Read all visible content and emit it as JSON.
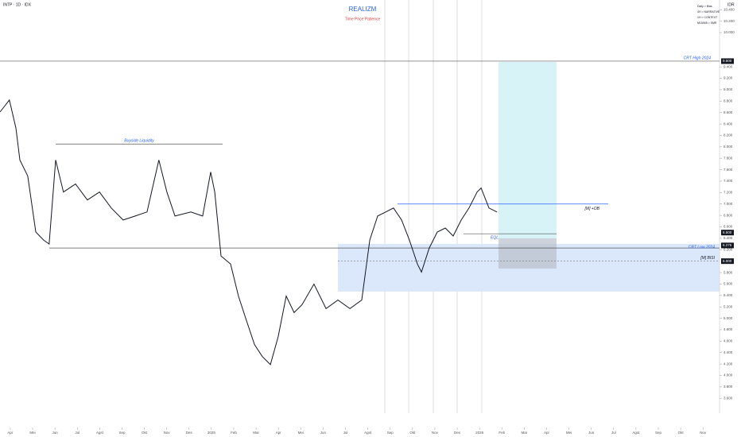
{
  "chart_data": {
    "type": "line",
    "symbol": "INTP · 1D · IDX",
    "currency": "IDR",
    "title": "REALIZM",
    "subtitle": "Time Price Patience",
    "notes": [
      "Daily > Bias",
      "4H > NARRATIVE",
      "1H > CONTEXT",
      "M15/M5 > SMR"
    ],
    "color": "#131722",
    "x": [
      -0.46,
      -0.04,
      0.25,
      0.43,
      0.78,
      1.14,
      1.49,
      1.74,
      2.03,
      2.38,
      2.92,
      3.45,
      3.99,
      4.52,
      5.05,
      5.59,
      6.12,
      6.65,
      7.01,
      7.37,
      8.08,
      8.61,
      8.97,
      9.15,
      9.43,
      9.86,
      10.21,
      10.57,
      10.93,
      11.28,
      11.64,
      11.99,
      12.35,
      12.7,
      13.06,
      13.59,
      14.13,
      14.66,
      15.2,
      15.73,
      16.09,
      16.44,
      16.8,
      17.15,
      17.51,
      17.86,
      18.22,
      18.4,
      18.75,
      19.11,
      19.47,
      19.82,
      20.18,
      20.53,
      20.89,
      21.07,
      21.42,
      21.78
    ],
    "values": [
      8610,
      8820,
      8330,
      7770,
      7490,
      6510,
      6370,
      6300,
      7770,
      7210,
      7350,
      7070,
      7210,
      6930,
      6720,
      6790,
      6860,
      7770,
      7210,
      6790,
      6860,
      6790,
      7560,
      7210,
      6090,
      5950,
      5390,
      4960,
      4540,
      4330,
      4190,
      4680,
      5390,
      5100,
      5240,
      5600,
      5170,
      5320,
      5170,
      5320,
      6370,
      6790,
      6860,
      6930,
      6720,
      6370,
      5950,
      5810,
      6230,
      6510,
      6580,
      6440,
      6720,
      6930,
      7210,
      7280,
      6930,
      6860
    ],
    "xlim": [
      -0.46,
      31.74
    ],
    "xticks": [
      {
        "value": 0,
        "label": "Apr"
      },
      {
        "value": 1,
        "label": "Mei"
      },
      {
        "value": 2,
        "label": "Jun"
      },
      {
        "value": 3,
        "label": "Jul"
      },
      {
        "value": 4,
        "label": "Agst"
      },
      {
        "value": 5,
        "label": "Sep"
      },
      {
        "value": 6,
        "label": "Okt"
      },
      {
        "value": 7,
        "label": "Nov"
      },
      {
        "value": 8,
        "label": "Des"
      },
      {
        "value": 9,
        "label": "2025"
      },
      {
        "value": 10,
        "label": "Feb"
      },
      {
        "value": 11,
        "label": "Mar"
      },
      {
        "value": 12,
        "label": "Apr"
      },
      {
        "value": 13,
        "label": "Mei"
      },
      {
        "value": 14,
        "label": "Jun"
      },
      {
        "value": 15,
        "label": "Jul"
      },
      {
        "value": 16,
        "label": "Agst"
      },
      {
        "value": 17,
        "label": "Sep"
      },
      {
        "value": 18,
        "label": "Okt"
      },
      {
        "value": 19,
        "label": "Nov"
      },
      {
        "value": 20,
        "label": "Des"
      },
      {
        "value": 21,
        "label": "2026"
      },
      {
        "value": 22,
        "label": "Feb"
      },
      {
        "value": 23,
        "label": "Mar"
      },
      {
        "value": 24,
        "label": "Apr"
      },
      {
        "value": 25,
        "label": "Mei"
      },
      {
        "value": 26,
        "label": "Jun"
      },
      {
        "value": 27,
        "label": "Jul"
      },
      {
        "value": 28,
        "label": "Agst"
      },
      {
        "value": 29,
        "label": "Sep"
      },
      {
        "value": 30,
        "label": "Okt"
      },
      {
        "value": 31,
        "label": "Nov"
      }
    ],
    "ylim": [
      3340,
      10570
    ],
    "yticks": [
      {
        "value": 3600,
        "label": "3.600"
      },
      {
        "value": 3800,
        "label": "3.800"
      },
      {
        "value": 4000,
        "label": "4.000"
      },
      {
        "value": 4200,
        "label": "4.200"
      },
      {
        "value": 4400,
        "label": "4.400"
      },
      {
        "value": 4600,
        "label": "4.600"
      },
      {
        "value": 4800,
        "label": "4.800"
      },
      {
        "value": 5000,
        "label": "5.000"
      },
      {
        "value": 5200,
        "label": "5.200"
      },
      {
        "value": 5400,
        "label": "5.400"
      },
      {
        "value": 5600,
        "label": "5.600"
      },
      {
        "value": 5800,
        "label": "5.800"
      },
      {
        "value": 6200,
        "label": "6.200"
      },
      {
        "value": 6400,
        "label": "6.400"
      },
      {
        "value": 6600,
        "label": "6.600"
      },
      {
        "value": 6800,
        "label": "6.800"
      },
      {
        "value": 7000,
        "label": "7.000"
      },
      {
        "value": 7200,
        "label": "7.200"
      },
      {
        "value": 7400,
        "label": "7.400"
      },
      {
        "value": 7600,
        "label": "7.600"
      },
      {
        "value": 7800,
        "label": "7.800"
      },
      {
        "value": 8000,
        "label": "8.000"
      },
      {
        "value": 8200,
        "label": "8.200"
      },
      {
        "value": 8400,
        "label": "8.400"
      },
      {
        "value": 8600,
        "label": "8.600"
      },
      {
        "value": 8800,
        "label": "8.800"
      },
      {
        "value": 9000,
        "label": "9.000"
      },
      {
        "value": 9200,
        "label": "9.200"
      },
      {
        "value": 9400,
        "label": "9.400"
      },
      {
        "value": 10000,
        "label": "10.000"
      },
      {
        "value": 10200,
        "label": "10.200"
      },
      {
        "value": 10400,
        "label": "10.400"
      }
    ],
    "price_tags": [
      {
        "value": 9500,
        "label": "9.500"
      },
      {
        "value": 6500,
        "label": "6.500"
      },
      {
        "value": 6275,
        "label": "6.275"
      },
      {
        "value": 6000,
        "label": "6.000"
      }
    ],
    "levels": [
      {
        "label": "CRT High 2024",
        "value": 9500
      },
      {
        "label": "Buyside Liquidity",
        "value": 8050
      },
      {
        "label": "[M] +OB",
        "value": 7000
      },
      {
        "label": "EQL",
        "value": 6480
      },
      {
        "label": "CRT Low 2024",
        "value": 6230
      },
      {
        "label": "[M] BISI",
        "value": 6000
      }
    ]
  }
}
